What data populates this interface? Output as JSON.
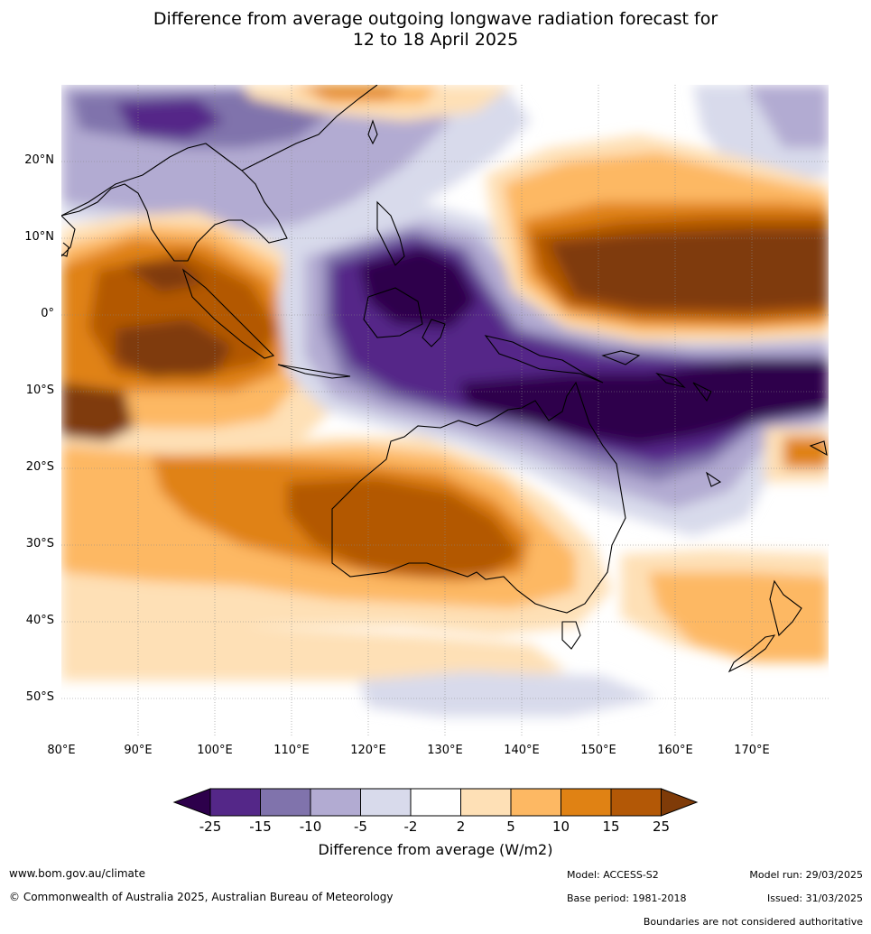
{
  "title_line1": "Difference from average outgoing longwave radiation forecast for",
  "title_line2": "12 to 18 April 2025",
  "map": {
    "lon_range": [
      80,
      180
    ],
    "lat_range": [
      -55,
      30
    ],
    "y_axis_labels": [
      "20°N",
      "10°N",
      "0°",
      "10°S",
      "20°S",
      "30°S",
      "40°S",
      "50°S"
    ],
    "x_axis_labels": [
      "80°E",
      "90°E",
      "100°E",
      "110°E",
      "120°E",
      "130°E",
      "140°E",
      "150°E",
      "160°E",
      "170°E"
    ],
    "gridlines": true,
    "coastline_color": "#000000"
  },
  "colorbar": {
    "tick_labels": [
      "-25",
      "-15",
      "-10",
      "-5",
      "-2",
      "2",
      "5",
      "10",
      "15",
      "25"
    ],
    "colors": [
      "#2d004b",
      "#542788",
      "#8073ac",
      "#b2abd2",
      "#d8daeb",
      "#ffffff",
      "#fee0b6",
      "#fdb863",
      "#e08214",
      "#b35806",
      "#7f3b08"
    ],
    "title": "Difference from average (W/m2)"
  },
  "footer": {
    "website": "www.bom.gov.au/climate",
    "copyright": "© Commonwealth of Australia 2025, Australian Bureau of Meteorology",
    "model": "Model: ACCESS-S2",
    "base_period": "Base period: 1981-2018",
    "model_run": "Model run: 29/03/2025",
    "issued": "Issued: 31/03/2025",
    "disclaimer": "Boundaries are not considered authoritative"
  }
}
